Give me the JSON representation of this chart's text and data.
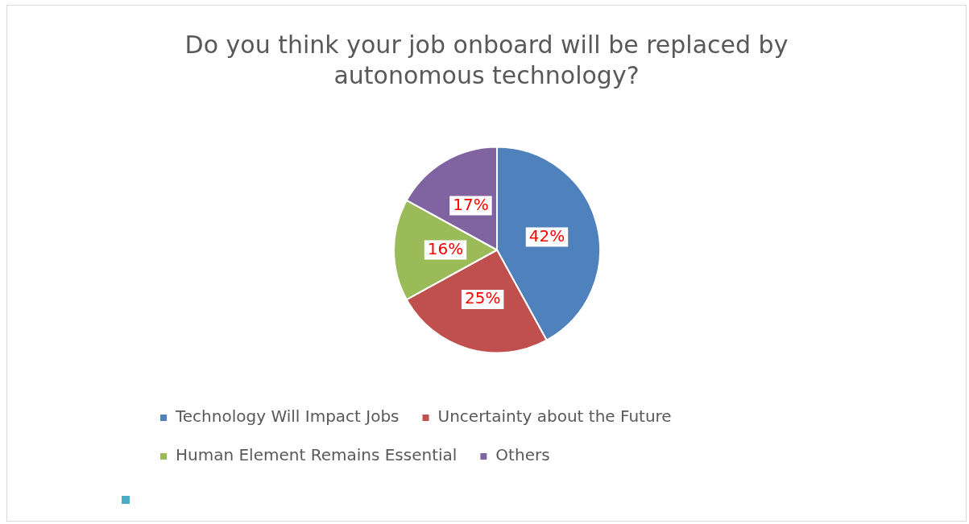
{
  "chart_data": {
    "type": "pie",
    "title": "Do you think your job onboard will be replaced by autonomous technology?",
    "categories": [
      "Technology Will Impact Jobs",
      "Uncertainty about the Future",
      "Human Element Remains Essential",
      "Others"
    ],
    "values": [
      42,
      25,
      16,
      17
    ],
    "colors": [
      "#4f81bd",
      "#c0504d",
      "#9bbb59",
      "#8064a2"
    ],
    "value_labels": [
      "42%",
      "25%",
      "16%",
      "17%"
    ],
    "legend": "bottom"
  }
}
